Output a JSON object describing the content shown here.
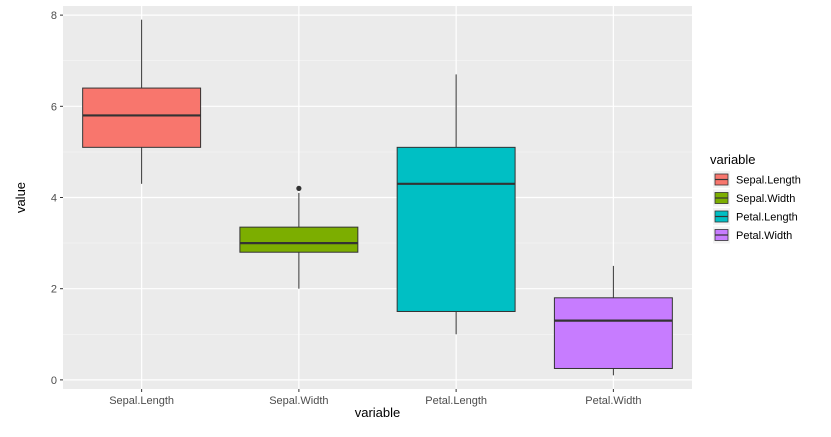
{
  "chart_data": {
    "type": "boxplot",
    "title": "",
    "xlabel": "variable",
    "ylabel": "value",
    "categories": [
      "Sepal.Length",
      "Sepal.Width",
      "Petal.Length",
      "Petal.Width"
    ],
    "ylim": [
      -0.2,
      8.2
    ],
    "yticks": [
      0,
      2,
      4,
      6,
      8
    ],
    "yticklabels": [
      "0",
      "2",
      "4",
      "6",
      "8"
    ],
    "grid": true,
    "legend": {
      "title": "variable",
      "position": "right",
      "entries": [
        "Sepal.Length",
        "Sepal.Width",
        "Petal.Length",
        "Petal.Width"
      ]
    },
    "colors": [
      "#F8766D",
      "#7CAE00",
      "#00BFC4",
      "#C77CFF"
    ],
    "series": [
      {
        "name": "Sepal.Length",
        "whisker_low": 4.3,
        "q1": 5.1,
        "median": 5.8,
        "q3": 6.4,
        "whisker_high": 7.9,
        "outliers": []
      },
      {
        "name": "Sepal.Width",
        "whisker_low": 2.0,
        "q1": 2.8,
        "median": 3.0,
        "q3": 3.35,
        "whisker_high": 4.1,
        "outliers": [
          4.2
        ]
      },
      {
        "name": "Petal.Length",
        "whisker_low": 1.0,
        "q1": 1.5,
        "median": 4.3,
        "q3": 5.1,
        "whisker_high": 6.7,
        "outliers": []
      },
      {
        "name": "Petal.Width",
        "whisker_low": 0.1,
        "q1": 0.25,
        "median": 1.3,
        "q3": 1.8,
        "whisker_high": 2.5,
        "outliers": []
      }
    ]
  }
}
